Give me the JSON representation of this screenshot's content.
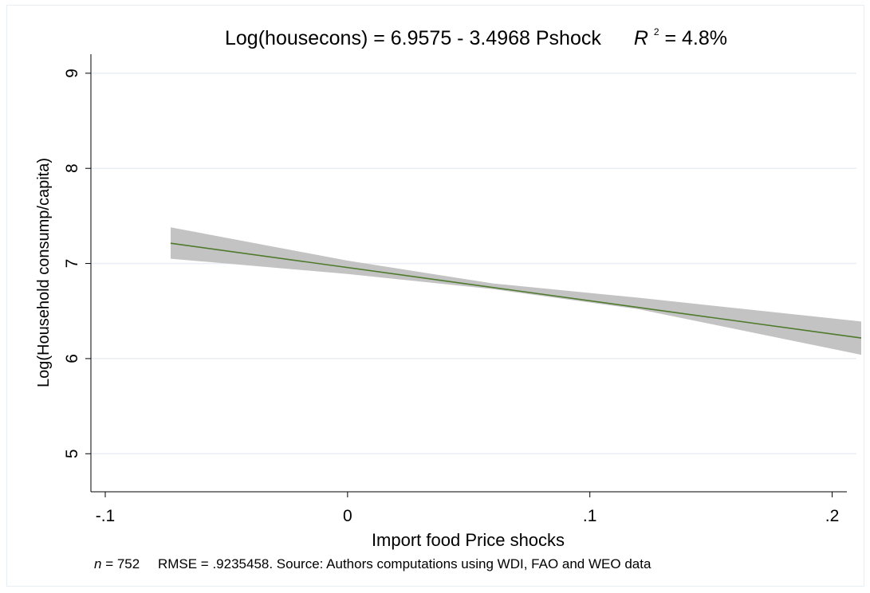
{
  "chart_data": {
    "type": "line",
    "title": {
      "prefix": "Log(housecons) = 6.9575 - 3.4968 Pshock",
      "r_symbol": "R",
      "r_exponent": "2",
      "r_value": " = 4.8%"
    },
    "xlabel": "Import food Price shocks",
    "ylabel": "Log(Household consump/capita)",
    "note": {
      "n_symbol": "n",
      "n_value": " = 752",
      "rest": "RMSE =  .9235458. Source: Authors computations using WDI, FAO and WEO data"
    },
    "xlim": [
      -0.1,
      0.212
    ],
    "ylim": [
      4.6,
      9.2
    ],
    "x_ticks": [
      {
        "value": -0.1,
        "label": "-.1"
      },
      {
        "value": 0,
        "label": "0"
      },
      {
        "value": 0.1,
        "label": ".1"
      },
      {
        "value": 0.2,
        "label": ".2"
      }
    ],
    "y_ticks": [
      {
        "value": 5,
        "label": "5"
      },
      {
        "value": 6,
        "label": "6"
      },
      {
        "value": 7,
        "label": "7"
      },
      {
        "value": 8,
        "label": "8"
      },
      {
        "value": 9,
        "label": "9"
      }
    ],
    "grid": true,
    "fit": {
      "intercept": 6.9575,
      "slope": -3.4968,
      "x_range": [
        -0.073,
        0.212
      ]
    },
    "ci_band": {
      "x": [
        -0.073,
        0.0,
        0.06,
        0.12,
        0.212
      ],
      "lower": [
        7.05,
        6.89,
        6.73,
        6.52,
        6.04
      ],
      "upper": [
        7.38,
        7.03,
        6.79,
        6.64,
        6.39
      ]
    },
    "colors": {
      "line": "#4e7a2c",
      "band": "#c3c3c3",
      "grid": "#e8eef4",
      "axis": "#000000"
    }
  }
}
